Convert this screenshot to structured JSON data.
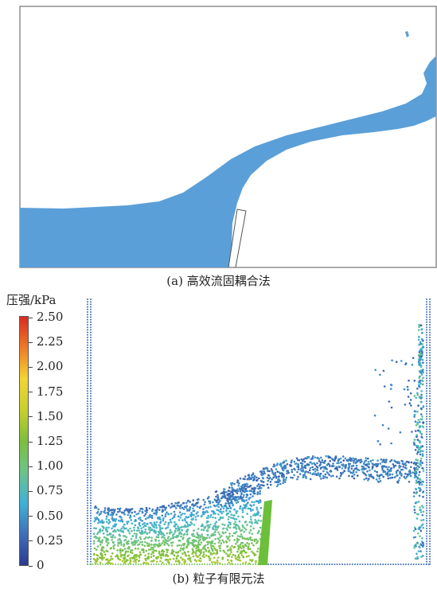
{
  "panel_a": {
    "caption": "(a) 高效流固耦合法"
  },
  "panel_b": {
    "caption": "(b) 粒子有限元法"
  },
  "colorbar": {
    "title": "压强/kPa",
    "ticks": [
      "2.50",
      "2.25",
      "2.00",
      "1.75",
      "1.50",
      "1.25",
      "1.00",
      "0.75",
      "0.50",
      "0.25",
      "0"
    ],
    "colors": [
      "#2b3a8f",
      "#3f6fb8",
      "#3fb2d8",
      "#6cc38a",
      "#7cbf3a",
      "#c8cf2d",
      "#f2d533",
      "#ee7b26",
      "#d92a22"
    ]
  },
  "colors": {
    "fluid": "#5b9fd8",
    "gate": "#6cbf3a",
    "frame": "#555555"
  }
}
